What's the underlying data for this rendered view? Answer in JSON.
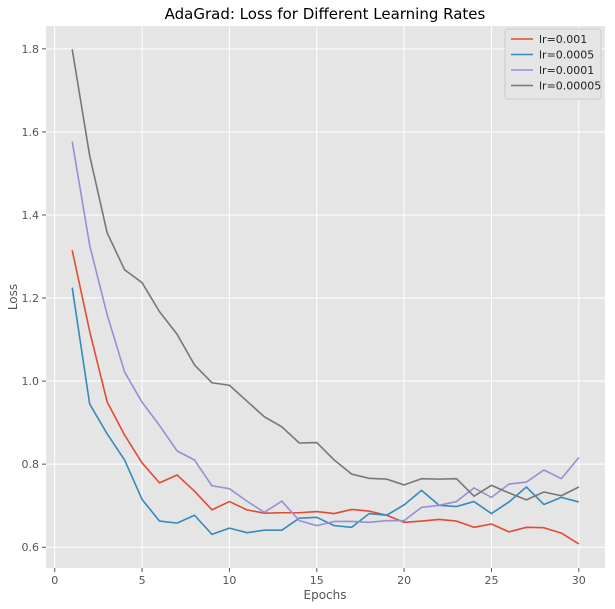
{
  "chart_data": {
    "type": "line",
    "title": "AdaGrad: Loss for Different Learning Rates",
    "xlabel": "Epochs",
    "ylabel": "Loss",
    "xlim": [
      -0.5,
      31.5
    ],
    "ylim": [
      0.55,
      1.855
    ],
    "xticks": [
      0,
      5,
      10,
      15,
      20,
      25,
      30
    ],
    "yticks": [
      0.6,
      0.8,
      1.0,
      1.2,
      1.4,
      1.6,
      1.8
    ],
    "grid": true,
    "legend_position": "top-right",
    "x": [
      1,
      2,
      3,
      4,
      5,
      6,
      7,
      8,
      9,
      10,
      11,
      12,
      13,
      14,
      15,
      16,
      17,
      18,
      19,
      20,
      21,
      22,
      23,
      24,
      25,
      26,
      27,
      28,
      29,
      30
    ],
    "series": [
      {
        "name": "lr=0.001",
        "color": "#E24A33",
        "values": [
          1.315,
          1.12,
          0.95,
          0.87,
          0.803,
          0.755,
          0.774,
          0.735,
          0.69,
          0.71,
          0.69,
          0.682,
          0.683,
          0.683,
          0.686,
          0.681,
          0.691,
          0.687,
          0.677,
          0.66,
          0.663,
          0.667,
          0.663,
          0.648,
          0.656,
          0.637,
          0.648,
          0.647,
          0.634,
          0.608
        ]
      },
      {
        "name": "lr=0.0005",
        "color": "#348ABD",
        "values": [
          1.225,
          0.945,
          0.873,
          0.81,
          0.715,
          0.663,
          0.658,
          0.677,
          0.631,
          0.646,
          0.635,
          0.641,
          0.641,
          0.67,
          0.672,
          0.652,
          0.648,
          0.681,
          0.677,
          0.702,
          0.737,
          0.701,
          0.698,
          0.71,
          0.681,
          0.709,
          0.745,
          0.703,
          0.72,
          0.709
        ]
      },
      {
        "name": "lr=0.0001",
        "color": "#988ED5",
        "values": [
          1.577,
          1.327,
          1.16,
          1.022,
          0.949,
          0.893,
          0.832,
          0.81,
          0.748,
          0.741,
          0.711,
          0.684,
          0.711,
          0.664,
          0.652,
          0.662,
          0.662,
          0.66,
          0.664,
          0.664,
          0.696,
          0.701,
          0.71,
          0.743,
          0.72,
          0.752,
          0.757,
          0.786,
          0.765,
          0.816
        ]
      },
      {
        "name": "lr=0.00005",
        "color": "#777777",
        "values": [
          1.799,
          1.543,
          1.357,
          1.268,
          1.237,
          1.167,
          1.113,
          1.039,
          0.996,
          0.99,
          0.952,
          0.914,
          0.89,
          0.851,
          0.852,
          0.81,
          0.776,
          0.766,
          0.764,
          0.75,
          0.765,
          0.764,
          0.765,
          0.723,
          0.749,
          0.731,
          0.714,
          0.733,
          0.724,
          0.745
        ]
      }
    ]
  },
  "colors": {
    "plot_background": "#E5E5E5",
    "grid": "#FFFFFF",
    "legend_background": "#E5E5E5",
    "legend_border": "#CCCCCC"
  }
}
